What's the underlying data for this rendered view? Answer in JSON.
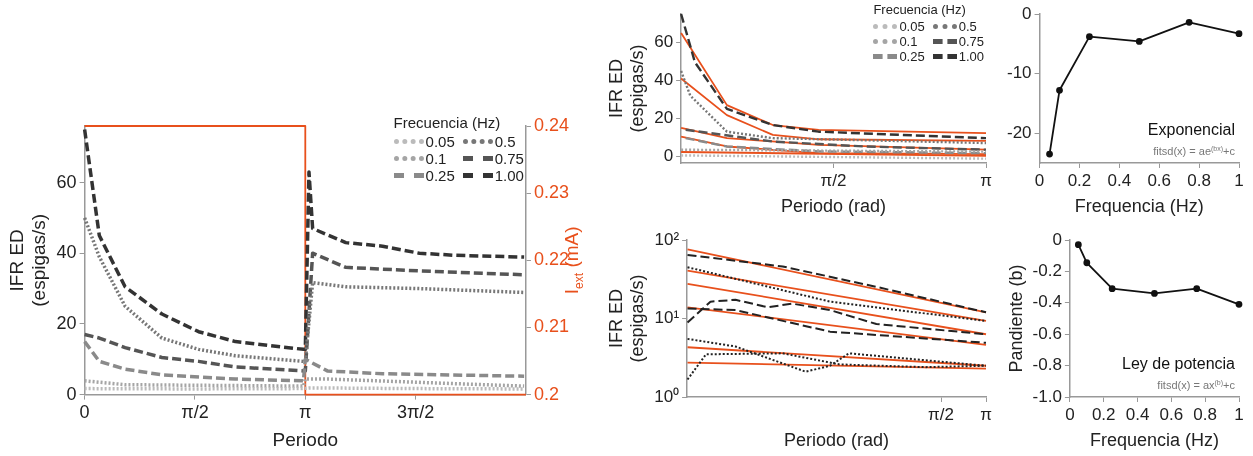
{
  "chart_data": [
    {
      "type": "line",
      "xlabel": "Periodo",
      "ylabel": "IFR ED (espigas/s)",
      "y2label": "I$_{ext}$ (mA)",
      "legend_title": "Frecuencia (Hz)",
      "legend": "top right",
      "xlim": [
        0,
        6.2832
      ],
      "xticks": [
        0,
        {
          "value": 1.5708,
          "label": "π/2"
        },
        {
          "value": 3.1416,
          "label": "π"
        },
        {
          "value": 4.7124,
          "label": "3π/2"
        }
      ],
      "ylim": [
        0,
        76
      ],
      "yticks": [
        0,
        20,
        40,
        60
      ],
      "y2lim": [
        0.2,
        0.24
      ],
      "y2ticks": [
        0.2,
        0.21,
        0.22,
        0.23,
        0.24
      ],
      "series": [
        {
          "name": "0.05",
          "color": "#bbbbbb",
          "line_style": "dotted",
          "x": [
            0,
            1.5,
            3.1,
            3.2,
            4.7,
            6.25
          ],
          "values": [
            1.7,
            1.6,
            1.7,
            1.9,
            1.7,
            1.6
          ]
        },
        {
          "name": "0.1",
          "color": "#a5a5a5",
          "line_style": "dotted",
          "x": [
            0,
            0.576,
            3.115,
            3.142,
            3.456,
            6.257
          ],
          "values": [
            3.9,
            2.8,
            2.4,
            4.4,
            4.4,
            2.4
          ]
        },
        {
          "name": "0.25",
          "color": "#8a8a8a",
          "line_style": "dashed",
          "x": [
            0,
            0.209,
            0.576,
            1.1,
            2.147,
            3.115,
            3.142,
            3.456,
            4.241,
            6.257
          ],
          "values": [
            15,
            9.4,
            7.2,
            5.6,
            4.4,
            3.9,
            10,
            6.7,
            5.9,
            5.2
          ]
        },
        {
          "name": "0.5",
          "color": "#777777",
          "line_style": "dotted",
          "x": [
            0,
            0.209,
            0.576,
            1.1,
            1.623,
            2.147,
            3.115,
            3.142,
            3.246,
            3.718,
            4.765,
            6.257
          ],
          "values": [
            50,
            39,
            25,
            16,
            12.8,
            11,
            9.4,
            9.4,
            31.7,
            30.5,
            30,
            28.9
          ]
        },
        {
          "name": "0.75",
          "color": "#555555",
          "line_style": "dashed",
          "x": [
            0,
            0.209,
            0.576,
            1.1,
            1.623,
            2.147,
            3.115,
            3.142,
            3.246,
            3.718,
            4.765,
            6.257
          ],
          "values": [
            17,
            16,
            13.3,
            10.5,
            9.4,
            7.8,
            6.7,
            6.7,
            40,
            36,
            35,
            33.9
          ]
        },
        {
          "name": "1.00",
          "color": "#333333",
          "line_style": "dashed",
          "x": [
            0,
            0.209,
            0.576,
            1.1,
            1.623,
            2.147,
            3.115,
            3.142,
            3.194,
            3.246,
            3.718,
            4.241,
            4.765,
            5.288,
            6.257
          ],
          "values": [
            75,
            45,
            30.5,
            22.8,
            17.8,
            15,
            12.8,
            12.8,
            63,
            47,
            43,
            42,
            40,
            39.4,
            38.9
          ]
        },
        {
          "color": "#e8501c",
          "line_style": "solid",
          "axis": "y2",
          "x": [
            0,
            3.1416,
            3.1416,
            6.2832
          ],
          "values": [
            0.24,
            0.24,
            0.2,
            0.2
          ]
        }
      ]
    },
    {
      "type": "line",
      "xlabel": "Periodo (rad)",
      "ylabel": "IFR ED (espigas/s)",
      "legend_title": "Frecuencia (Hz)",
      "legend": "top right",
      "xlim": [
        0,
        3.1416
      ],
      "xticks": [
        {
          "value": 1.5708,
          "label": "π/2"
        },
        {
          "value": 3.1416,
          "label": "π"
        }
      ],
      "ylim": [
        -3.5,
        75
      ],
      "yticks": [
        0,
        20,
        40,
        60
      ],
      "series": [
        {
          "name": "0.05",
          "color": "#bbbbbb",
          "line_style": "dotted",
          "x": [
            0,
            3.1416
          ],
          "values": [
            0.5,
            -1.2
          ]
        },
        {
          "name": "0.1",
          "color": "#a5a5a5",
          "line_style": "dotted",
          "x": [
            0,
            3.1416
          ],
          "values": [
            3.5,
            2.5
          ]
        },
        {
          "name": "0.25",
          "color": "#8a8a8a",
          "line_style": "dashed",
          "x": [
            0.047,
            0.472,
            1.417,
            3.1416
          ],
          "values": [
            9.6,
            5.2,
            2.6,
            1.7
          ]
        },
        {
          "name": "0.5",
          "color": "#777777",
          "line_style": "dotted",
          "x": [
            0,
            0.094,
            0.472,
            0.945,
            3.1416
          ],
          "values": [
            45,
            32,
            13,
            9.6,
            7
          ]
        },
        {
          "name": "0.75",
          "color": "#555555",
          "line_style": "dashed",
          "x": [
            0.047,
            0.945,
            1.89,
            3.1416
          ],
          "values": [
            14,
            7.8,
            5.2,
            3.5
          ]
        },
        {
          "name": "1.00",
          "color": "#333333",
          "line_style": "dashed",
          "x": [
            0,
            0.142,
            0.472,
            0.945,
            1.417,
            3.1416
          ],
          "values": [
            75,
            49.6,
            25,
            16.5,
            13,
            9.6
          ]
        },
        {
          "color": "#e8501c",
          "line_style": "solid",
          "x": [
            0,
            0.472,
            0.945,
            1.417,
            3.1416
          ],
          "values": [
            65,
            27,
            16.5,
            13.9,
            12.2
          ]
        },
        {
          "color": "#e8501c",
          "line_style": "solid",
          "x": [
            0,
            0.472,
            0.945,
            1.417,
            3.1416
          ],
          "values": [
            41,
            21.7,
            11.3,
            9,
            8.2
          ]
        },
        {
          "color": "#e8501c",
          "line_style": "solid",
          "x": [
            0,
            0.472,
            1.417,
            3.1416
          ],
          "values": [
            15,
            9.6,
            6.1,
            3.5
          ]
        },
        {
          "color": "#e8501c",
          "line_style": "solid",
          "x": [
            0,
            0.472,
            1.417,
            3.1416
          ],
          "values": [
            10.4,
            5.2,
            1.7,
            1.2
          ]
        },
        {
          "color": "#e8501c",
          "line_style": "solid",
          "x": [
            0,
            3.1416
          ],
          "values": [
            2.3,
            0.3
          ]
        }
      ]
    },
    {
      "type": "line",
      "xlabel": "Periodo (rad)",
      "ylabel": "IFR ED (espigas/s)",
      "log": "xy",
      "xlim": [
        0.0314,
        3.1416
      ],
      "xticks": [
        {
          "value": 1.5708,
          "label": "π/2"
        },
        {
          "value": 3.1416,
          "label": "π"
        }
      ],
      "ylim": [
        1,
        100
      ],
      "yticks": [
        {
          "value": 1,
          "label": "10⁰"
        },
        {
          "value": 10,
          "label": "10¹"
        },
        {
          "value": 100,
          "label": "10²"
        }
      ],
      "series": [
        {
          "color": "#222222",
          "line_style": "dashed",
          "x": [
            0.0316,
            0.137,
            0.58,
            3.1416
          ],
          "values": [
            64.6,
            46,
            25.3,
            12
          ]
        },
        {
          "color": "#222222",
          "line_style": "dotted",
          "x": [
            0.0316,
            0.284,
            3.1416
          ],
          "values": [
            45,
            16.4,
            9.3
          ]
        },
        {
          "color": "#222222",
          "line_style": "dashed",
          "x": [
            0.0316,
            0.045,
            0.0662,
            0.109,
            0.158,
            0.284,
            0.58,
            3.1416
          ],
          "values": [
            8.9,
            16.4,
            17.3,
            13.9,
            15.5,
            12.8,
            8.5,
            6.3
          ]
        },
        {
          "color": "#222222",
          "line_style": "dashed",
          "x": [
            0.0316,
            0.0662,
            0.284,
            3.1416
          ],
          "values": [
            13.4,
            12.8,
            6.8,
            4.9
          ]
        },
        {
          "color": "#222222",
          "line_style": "dotted",
          "x": [
            0.0316,
            0.0662,
            0.195,
            0.284,
            0.38,
            3.1416
          ],
          "values": [
            5.5,
            4.4,
            2.1,
            2.5,
            3.6,
            2.5
          ]
        },
        {
          "color": "#222222",
          "line_style": "dotted",
          "x": [
            0.0316,
            0.042,
            0.137,
            0.329,
            1.22,
            3.1416
          ],
          "values": [
            1.67,
            3.5,
            3.6,
            2.6,
            2.4,
            2.5
          ]
        },
        {
          "color": "#e8501c",
          "line_style": "solid",
          "x": [
            0.0316,
            3.1416
          ],
          "values": [
            76,
            12
          ]
        },
        {
          "color": "#e8501c",
          "line_style": "solid",
          "x": [
            0.0316,
            3.1416
          ],
          "values": [
            40.7,
            9.3
          ]
        },
        {
          "color": "#e8501c",
          "line_style": "solid",
          "x": [
            0.0316,
            3.1416
          ],
          "values": [
            27.7,
            6.3
          ]
        },
        {
          "color": "#e8501c",
          "line_style": "solid",
          "x": [
            0.0316,
            3.1416
          ],
          "values": [
            13.9,
            4.6
          ]
        },
        {
          "color": "#e8501c",
          "line_style": "solid",
          "x": [
            0.0316,
            3.1416
          ],
          "values": [
            4.3,
            2.5
          ]
        },
        {
          "color": "#e8501c",
          "line_style": "solid",
          "x": [
            0.0316,
            3.1416
          ],
          "values": [
            2.74,
            2.3
          ]
        }
      ]
    },
    {
      "type": "line",
      "xlabel": "Frequencia (Hz)",
      "marker": "circle",
      "line_style": "solid",
      "annotations": [
        "Exponencial",
        "fitsd(x) = ae$^{(bx)}$+c"
      ],
      "xlim": [
        0,
        1
      ],
      "xticks": [
        0,
        0.2,
        0.4,
        0.6,
        0.8,
        1
      ],
      "ylim": [
        -25,
        0
      ],
      "yticks": [
        -20,
        -10,
        0
      ],
      "x": [
        0.05,
        0.1,
        0.25,
        0.5,
        0.75,
        1
      ],
      "series": [
        {
          "color": "#111111",
          "values": [
            -23.5,
            -12.8,
            -3.8,
            -4.6,
            -1.4,
            -3.3
          ]
        }
      ]
    },
    {
      "type": "line",
      "xlabel": "Frequencia (Hz)",
      "ylabel": "Pandiente (b)",
      "marker": "circle",
      "line_style": "solid",
      "annotations": [
        "Ley de potencia",
        "fitsd(x) = ax$^{(b)}$+c"
      ],
      "xlim": [
        0,
        1
      ],
      "xticks": [
        0,
        0.2,
        0.4,
        0.6,
        0.8,
        1
      ],
      "ylim": [
        -1,
        0
      ],
      "yticks": [
        {
          "value": -1,
          "label": "-1.0"
        },
        -0.8,
        -0.6,
        -0.4,
        -0.2,
        0
      ],
      "x": [
        0.05,
        0.1,
        0.25,
        0.5,
        0.75,
        1
      ],
      "series": [
        {
          "color": "#111111",
          "values": [
            -0.03,
            -0.145,
            -0.31,
            -0.34,
            -0.31,
            -0.41
          ]
        }
      ]
    }
  ]
}
